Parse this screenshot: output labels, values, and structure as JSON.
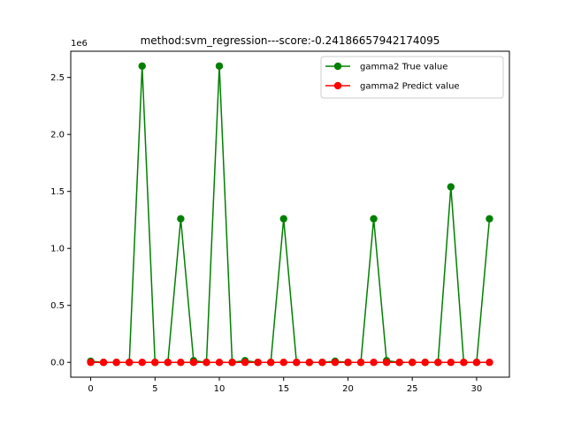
{
  "chart_data": {
    "type": "line",
    "title": "method:svm_regression---score:-0.24186657942174095",
    "xlabel": "",
    "ylabel": "",
    "y_scale_label": "1e6",
    "x": [
      0,
      1,
      2,
      3,
      4,
      5,
      6,
      7,
      8,
      9,
      10,
      11,
      12,
      13,
      14,
      15,
      16,
      17,
      18,
      19,
      20,
      21,
      22,
      23,
      24,
      25,
      26,
      27,
      28,
      29,
      30,
      31
    ],
    "xlim": [
      -1.55,
      32.55
    ],
    "ylim": [
      -130000,
      2730000
    ],
    "xticks": [
      0,
      5,
      10,
      15,
      20,
      25,
      30
    ],
    "xtick_labels": [
      "0",
      "5",
      "10",
      "15",
      "20",
      "25",
      "30"
    ],
    "yticks": [
      0,
      500000,
      1000000,
      1500000,
      2000000,
      2500000
    ],
    "ytick_labels": [
      "0.0",
      "0.5",
      "1.0",
      "1.5",
      "2.0",
      "2.5"
    ],
    "grid": false,
    "legend_position": "top-right",
    "series": [
      {
        "name": "gamma2 True value",
        "color": "#008000",
        "values": [
          10000,
          0,
          0,
          0,
          2600000,
          0,
          0,
          1260000,
          15000,
          0,
          2600000,
          0,
          15000,
          0,
          0,
          1260000,
          0,
          0,
          0,
          10000,
          0,
          0,
          1260000,
          15000,
          0,
          0,
          0,
          0,
          1540000,
          0,
          0,
          1260000
        ]
      },
      {
        "name": "gamma2 Predict value",
        "color": "#ff0000",
        "values": [
          0,
          0,
          0,
          0,
          0,
          0,
          0,
          0,
          0,
          0,
          0,
          0,
          0,
          0,
          0,
          0,
          0,
          0,
          0,
          0,
          0,
          0,
          0,
          0,
          0,
          0,
          0,
          0,
          0,
          0,
          0,
          0
        ]
      }
    ]
  }
}
